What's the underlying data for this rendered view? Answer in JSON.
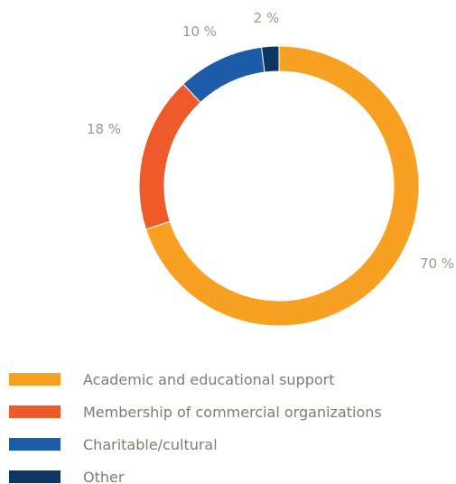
{
  "chart_data": {
    "type": "pie",
    "style": "donut",
    "title": "",
    "slices": [
      {
        "label": "Academic and educational support",
        "value": 70,
        "value_label": "70 %",
        "color": "#f7a021"
      },
      {
        "label": "Membership of commercial organizations",
        "value": 18,
        "value_label": "18 %",
        "color": "#ee5a2a"
      },
      {
        "label": "Charitable/cultural",
        "value": 10,
        "value_label": "10 %",
        "color": "#1c5ca8"
      },
      {
        "label": "Other",
        "value": 2,
        "value_label": "2 %",
        "color": "#0f3563"
      }
    ],
    "legend_position": "bottom-left"
  }
}
